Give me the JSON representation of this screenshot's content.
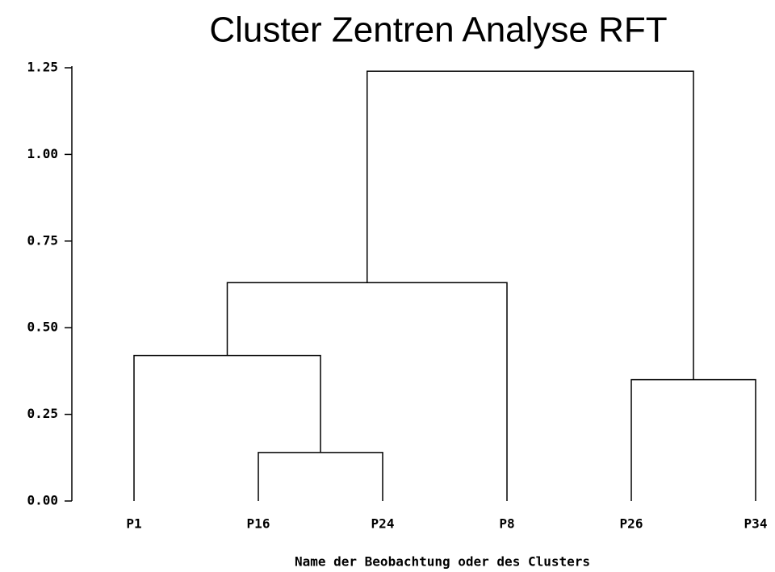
{
  "chart_data": {
    "type": "dendrogram",
    "title": "Cluster Zentren Analyse RFT",
    "x_label": "Name der Beobachtung oder des Clusters",
    "leaves": [
      "P1",
      "P16",
      "P24",
      "P8",
      "P26",
      "P34"
    ],
    "merges": [
      {
        "children": [
          1,
          2
        ],
        "height": 0.14
      },
      {
        "children": [
          0,
          6
        ],
        "height": 0.42
      },
      {
        "children": [
          7,
          3
        ],
        "height": 0.63
      },
      {
        "children": [
          4,
          5
        ],
        "height": 0.35
      },
      {
        "children": [
          8,
          9
        ],
        "height": 1.24
      }
    ],
    "ylim": [
      0,
      1.25
    ],
    "yticks": [
      {
        "value": 0,
        "label": "0.00"
      },
      0.25,
      {
        "value": 0.5,
        "label": "0.50"
      },
      0.75,
      {
        "value": 1,
        "label": "1.00"
      },
      1.25
    ],
    "color": "#000000"
  }
}
